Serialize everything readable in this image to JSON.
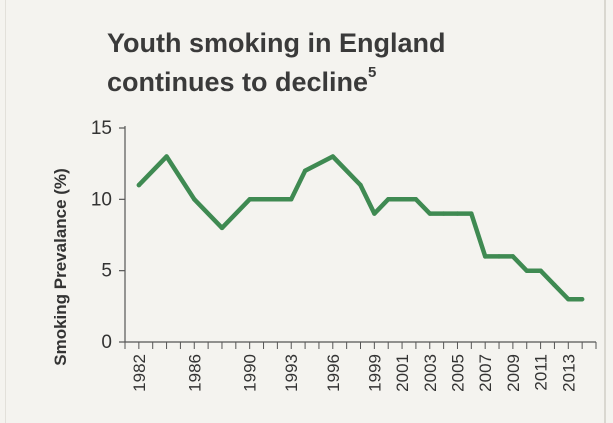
{
  "chart_data": {
    "type": "line",
    "title_line1": "Youth smoking in England",
    "title_line2": "continues to decline",
    "title_superscript": "5",
    "xlabel": "",
    "ylabel": "Smoking Prevalance (%)",
    "ylim": [
      0,
      15
    ],
    "yticks": [
      0,
      5,
      10,
      15
    ],
    "xtick_labels": [
      "1982",
      "1986",
      "1990",
      "1993",
      "1996",
      "1999",
      "2001",
      "2003",
      "2005",
      "2007",
      "2009",
      "2011",
      "2013"
    ],
    "grid": false,
    "line_color": "#3f8a52",
    "x": [
      "1982",
      "1984",
      "1986",
      "1988",
      "1990",
      "1992",
      "1993",
      "1994",
      "1996",
      "1998",
      "1999",
      "2000",
      "2001",
      "2002",
      "2003",
      "2004",
      "2005",
      "2006",
      "2007",
      "2008",
      "2009",
      "2010",
      "2011",
      "2012",
      "2013",
      "2014"
    ],
    "values": [
      11,
      13,
      10,
      8,
      10,
      10,
      10,
      12,
      13,
      11,
      9,
      10,
      10,
      10,
      9,
      9,
      9,
      9,
      6,
      6,
      6,
      5,
      5,
      4,
      3,
      3
    ]
  }
}
